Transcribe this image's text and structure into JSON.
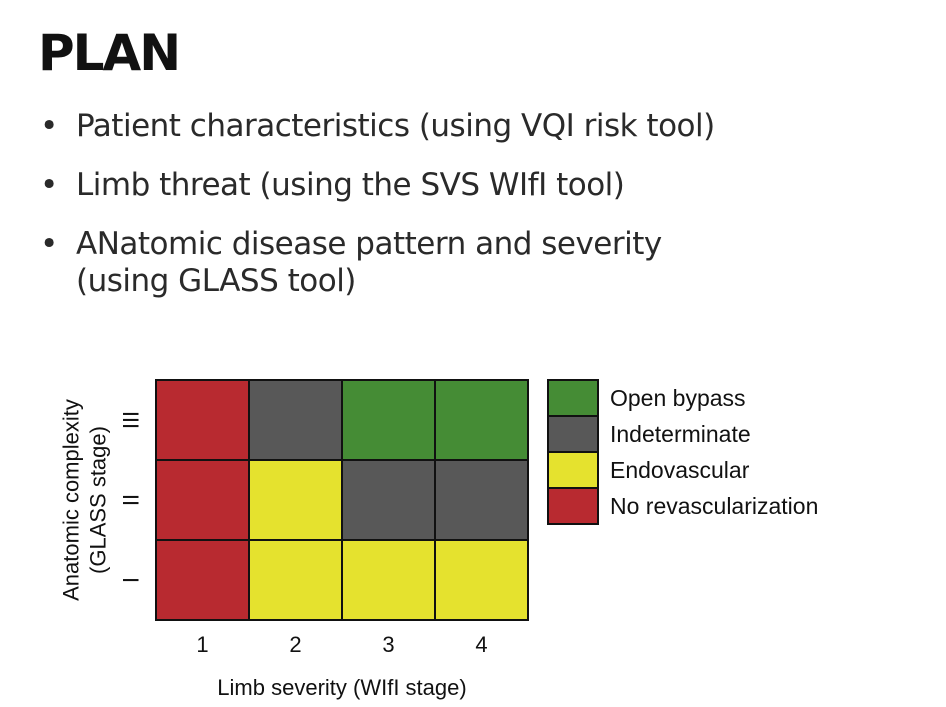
{
  "slide": {
    "title": "PLAN",
    "bullets": [
      {
        "lines": [
          "Patient characteristics (using VQI risk tool)"
        ]
      },
      {
        "lines": [
          "Limb threat (using the SVS WIfI tool)"
        ]
      },
      {
        "lines": [
          "ANatomic disease pattern and severity",
          "(using GLASS tool)"
        ]
      }
    ],
    "bullet_symbol": "•"
  },
  "chart_data": {
    "type": "heatmap",
    "x": [
      "1",
      "2",
      "3",
      "4"
    ],
    "y": [
      "I",
      "II",
      "III"
    ],
    "xlabel": "Limb severity (WIfI stage)",
    "ylabel": [
      "Anatomic complexity",
      "(GLASS stage)"
    ],
    "cells": [
      [
        "No revascularization",
        "Endovascular",
        "Endovascular",
        "Endovascular"
      ],
      [
        "No revascularization",
        "Endovascular",
        "Indeterminate",
        "Indeterminate"
      ],
      [
        "No revascularization",
        "Indeterminate",
        "Open bypass",
        "Open bypass"
      ]
    ],
    "legend": [
      {
        "label": "Open bypass",
        "color": "#458c35"
      },
      {
        "label": "Indeterminate",
        "color": "#585858"
      },
      {
        "label": "Endovascular",
        "color": "#e5e22e"
      },
      {
        "label": "No revascularization",
        "color": "#b82a30"
      }
    ],
    "legend_position": "right"
  }
}
